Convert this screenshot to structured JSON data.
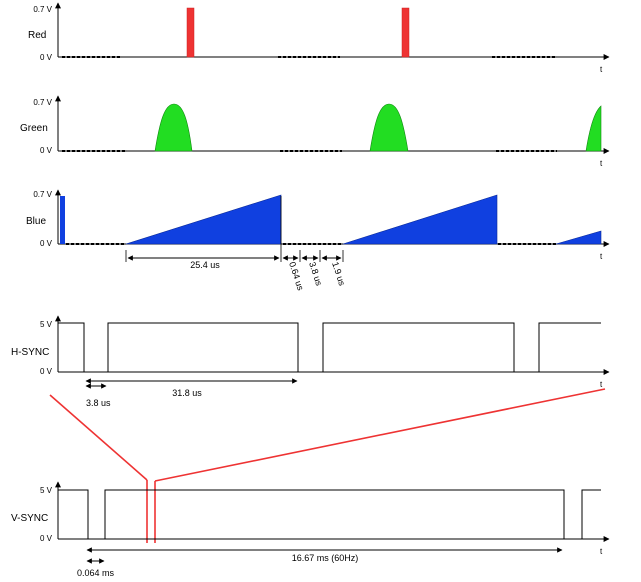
{
  "panels": {
    "red": {
      "label": "Red",
      "vmax": "0.7 V",
      "vmin": "0 V",
      "axis": "t",
      "color": "#ee3333"
    },
    "green": {
      "label": "Green",
      "vmax": "0.7 V",
      "vmin": "0 V",
      "axis": "t",
      "color": "#22dd22"
    },
    "blue": {
      "label": "Blue",
      "vmax": "0.7 V",
      "vmin": "0 V",
      "axis": "t",
      "color": "#1040e0"
    },
    "hsync": {
      "label": "H-SYNC",
      "vmax": "5 V",
      "vmin": "0 V",
      "axis": "t"
    },
    "vsync": {
      "label": "V-SYNC",
      "vmax": "5 V",
      "vmin": "0 V",
      "axis": "t"
    }
  },
  "measurements": {
    "active_video": "25.4 us",
    "front_porch": "0.64 us",
    "sync_pulse_rgb": "3.8 us",
    "back_porch": "1.9 us",
    "hsync_pulse": "3.8 us",
    "hsync_period": "31.8 us",
    "vsync_pulse": "0.064 ms",
    "vsync_period": "16.67 ms (60Hz)"
  },
  "colors": {
    "zoom_lines": "#ee3333",
    "ink": "#000000"
  }
}
